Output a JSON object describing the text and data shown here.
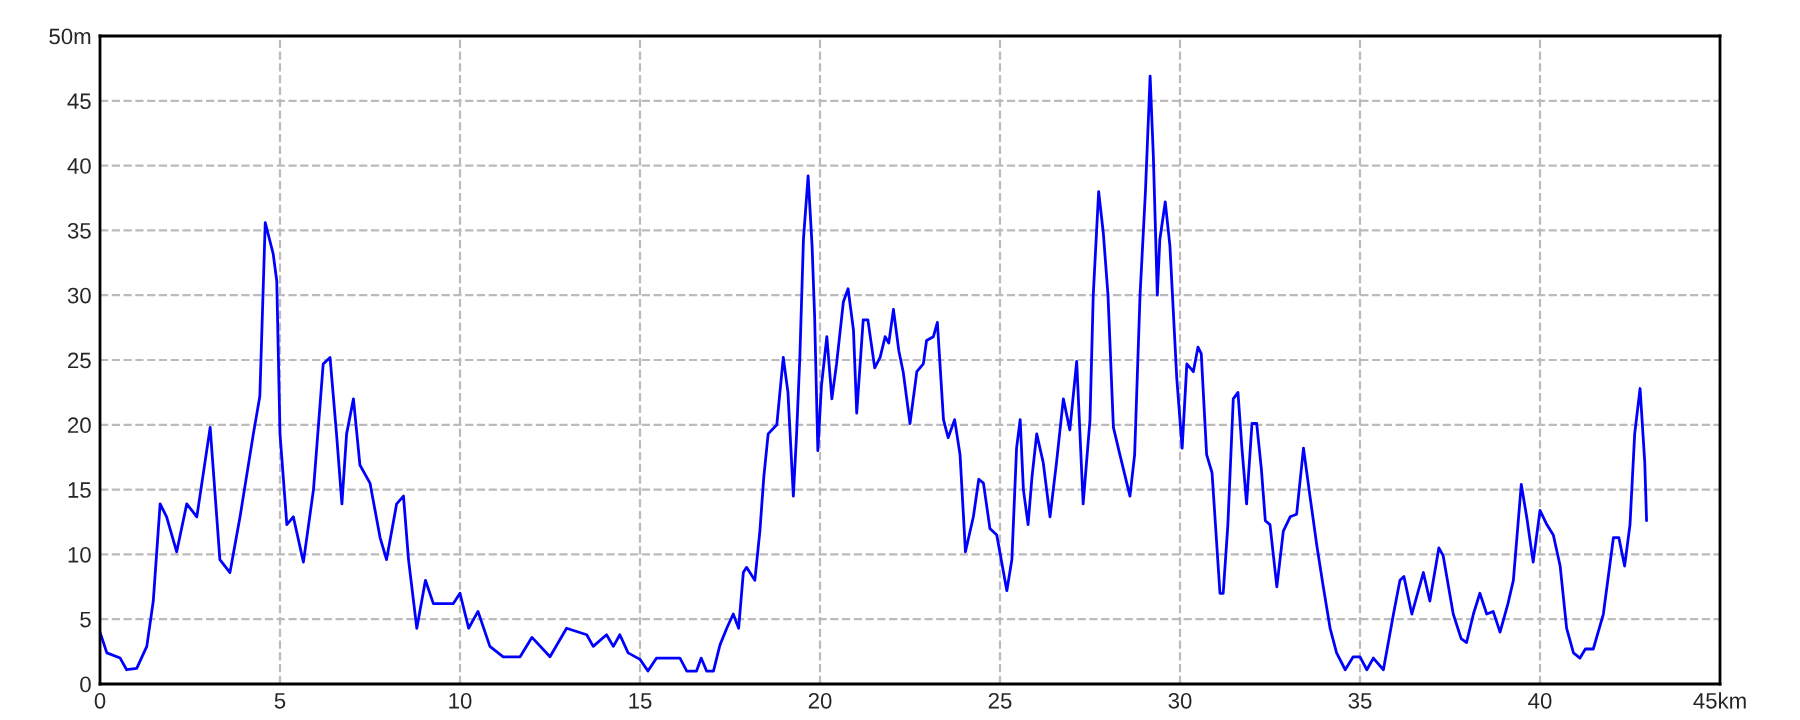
{
  "chart_data": {
    "type": "line",
    "xlim": [
      0,
      45
    ],
    "ylim": [
      0,
      50
    ],
    "xticks": [
      0,
      5,
      10,
      15,
      20,
      25,
      30,
      35,
      40,
      {
        "value": 45,
        "label": "45km"
      }
    ],
    "yticks": [
      0,
      5,
      10,
      15,
      20,
      25,
      30,
      35,
      40,
      45,
      {
        "value": 50,
        "label": "50m"
      }
    ],
    "grid": true,
    "marker": "none",
    "line_style": "solid",
    "series": [
      {
        "color": "#0000ff",
        "x": [
          0,
          0.19,
          0.56,
          0.74,
          1.02,
          1.3,
          1.48,
          1.67,
          1.85,
          2.13,
          2.41,
          2.69,
          3.06,
          3.33,
          3.61,
          3.89,
          4.26,
          4.44,
          4.59,
          4.81,
          4.91,
          5.0,
          5.19,
          5.37,
          5.65,
          5.93,
          6.2,
          6.39,
          6.57,
          6.72,
          6.85,
          7.04,
          7.22,
          7.5,
          7.78,
          7.96,
          8.24,
          8.43,
          8.57,
          8.8,
          9.04,
          9.26,
          9.81,
          10.0,
          10.24,
          10.5,
          10.83,
          11.2,
          11.67,
          12.0,
          12.5,
          12.96,
          13.52,
          13.7,
          14.07,
          14.26,
          14.44,
          14.67,
          15.0,
          15.22,
          15.46,
          16.11,
          16.3,
          16.57,
          16.7,
          16.85,
          17.04,
          17.22,
          17.41,
          17.59,
          17.74,
          17.87,
          17.96,
          18.19,
          18.33,
          18.44,
          18.56,
          18.8,
          18.98,
          19.11,
          19.26,
          19.35,
          19.44,
          19.54,
          19.67,
          19.78,
          19.85,
          19.94,
          20.04,
          20.19,
          20.33,
          20.46,
          20.65,
          20.78,
          20.93,
          21.02,
          21.2,
          21.33,
          21.52,
          21.67,
          21.81,
          21.91,
          22.04,
          22.19,
          22.31,
          22.5,
          22.69,
          22.87,
          22.96,
          23.15,
          23.26,
          23.43,
          23.56,
          23.74,
          23.89,
          24.04,
          24.26,
          24.41,
          24.54,
          24.72,
          24.91,
          25.19,
          25.33,
          25.46,
          25.56,
          25.65,
          25.78,
          25.89,
          26.02,
          26.2,
          26.39,
          26.57,
          26.76,
          26.94,
          27.13,
          27.31,
          27.5,
          27.59,
          27.74,
          27.87,
          28.0,
          28.15,
          28.33,
          28.61,
          28.74,
          28.89,
          29.04,
          29.17,
          29.26,
          29.37,
          29.44,
          29.59,
          29.72,
          29.91,
          30.06,
          30.19,
          30.37,
          30.5,
          30.59,
          30.74,
          30.89,
          31.11,
          31.2,
          31.33,
          31.48,
          31.61,
          31.72,
          31.85,
          32.0,
          32.13,
          32.26,
          32.37,
          32.5,
          32.69,
          32.87,
          33.06,
          33.24,
          33.43,
          33.61,
          33.8,
          33.98,
          34.17,
          34.35,
          34.59,
          34.81,
          35.0,
          35.19,
          35.37,
          35.65,
          35.93,
          36.11,
          36.22,
          36.44,
          36.76,
          36.94,
          37.19,
          37.31,
          37.59,
          37.81,
          37.96,
          38.15,
          38.33,
          38.52,
          38.7,
          38.89,
          39.11,
          39.26,
          39.48,
          39.63,
          39.81,
          40.0,
          40.19,
          40.37,
          40.56,
          40.74,
          40.93,
          41.11,
          41.26,
          41.48,
          41.76,
          42.04,
          42.19,
          42.35,
          42.5,
          42.63,
          42.78,
          42.91,
          42.96
        ],
        "values": [
          4,
          2.4,
          2,
          1.1,
          1.2,
          2.9,
          6.4,
          13.9,
          12.9,
          10.2,
          13.9,
          12.9,
          19.8,
          9.6,
          8.6,
          12.9,
          19.3,
          22.2,
          35.6,
          33.2,
          31.1,
          19.3,
          12.3,
          12.9,
          9.4,
          15,
          24.7,
          25.2,
          19.3,
          13.9,
          19.3,
          22,
          16.9,
          15.5,
          11.3,
          9.6,
          13.9,
          14.5,
          9.6,
          4.3,
          8,
          6.2,
          6.2,
          7,
          4.3,
          5.6,
          2.9,
          2.1,
          2.1,
          3.6,
          2.1,
          4.3,
          3.8,
          2.9,
          3.8,
          2.9,
          3.8,
          2.4,
          1.9,
          1,
          2,
          2,
          1,
          1,
          2,
          1,
          1,
          3,
          4.3,
          5.4,
          4.3,
          8.6,
          9,
          8,
          11.8,
          16,
          19.3,
          20,
          25.2,
          22.5,
          14.5,
          19.3,
          25.2,
          34.3,
          39.2,
          33.8,
          28.4,
          18,
          23,
          26.8,
          22,
          24.7,
          29.5,
          30.5,
          27.3,
          20.9,
          28.1,
          28.1,
          24.4,
          25.2,
          26.8,
          26.3,
          28.9,
          25.7,
          24.1,
          20.1,
          24.1,
          24.7,
          26.5,
          26.8,
          27.9,
          20.4,
          19,
          20.4,
          17.7,
          10.2,
          12.9,
          15.8,
          15.5,
          12,
          11.5,
          7.2,
          9.6,
          18.2,
          20.4,
          15,
          12.3,
          16,
          19.3,
          17.1,
          12.9,
          17.1,
          22,
          19.6,
          24.9,
          13.9,
          20.4,
          30,
          38,
          34.8,
          30,
          19.8,
          17.7,
          14.5,
          17.7,
          30,
          38,
          46.9,
          40.7,
          30,
          34.3,
          37.2,
          33.8,
          23.6,
          18.2,
          24.7,
          24.1,
          26,
          25.5,
          17.7,
          16.3,
          7,
          7,
          12.3,
          22,
          22.5,
          18.2,
          13.9,
          20.1,
          20.1,
          16.6,
          12.6,
          12.3,
          7.5,
          11.8,
          12.9,
          13.1,
          18.2,
          14.5,
          10.7,
          7.5,
          4.3,
          2.4,
          1.1,
          2.1,
          2.1,
          1.1,
          2,
          1.1,
          5.4,
          8,
          8.3,
          5.4,
          8.6,
          6.4,
          10.5,
          9.9,
          5.4,
          3.5,
          3.2,
          5.4,
          7,
          5.4,
          5.6,
          4,
          6.2,
          8,
          15.4,
          12.9,
          9.4,
          13.4,
          12.3,
          11.5,
          9.1,
          4.3,
          2.4,
          2,
          2.7,
          2.7,
          5.4,
          11.3,
          11.3,
          9.1,
          12.3,
          19.3,
          22.8,
          17.1,
          12.6
        ]
      }
    ]
  }
}
